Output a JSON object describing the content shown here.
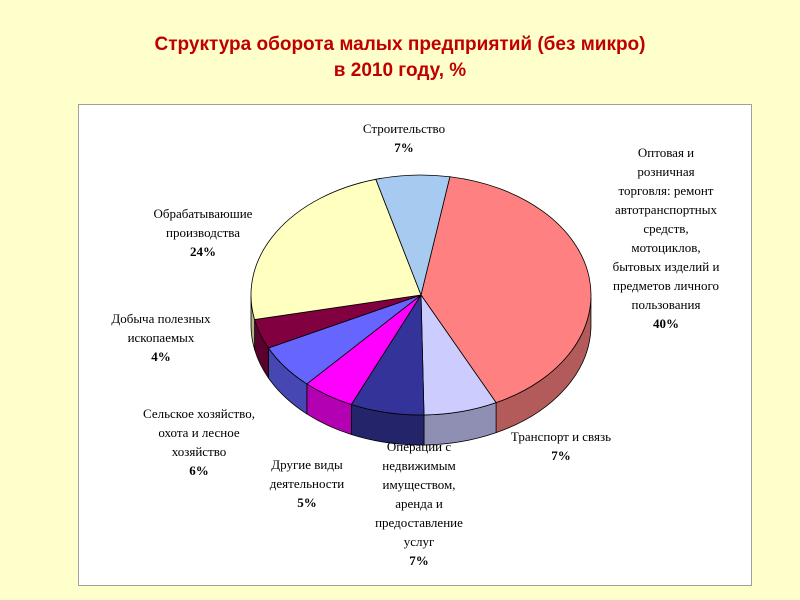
{
  "title_line1": "Структура оборота малых предприятий  (без микро)",
  "title_line2": "в 2010 году, %",
  "chart_data": {
    "type": "pie",
    "slices": [
      {
        "label": [
          "Оптовая и",
          "розничная",
          "торговля: ремонт",
          "автотранспортных",
          "средств,",
          "мотоциклов,",
          "бытовых изделий и",
          "предметов личного",
          "пользования"
        ],
        "pct_label": "40%",
        "value": 40,
        "color": "#ff8080"
      },
      {
        "label": [
          "Транспорт и связь"
        ],
        "pct_label": "7%",
        "value": 7,
        "color": "#ccccff"
      },
      {
        "label": [
          "Операции с",
          "недвижимым",
          "имуществом,",
          "аренда и",
          "предоставление",
          "услуг"
        ],
        "pct_label": "7%",
        "value": 7,
        "color": "#333399"
      },
      {
        "label": [
          "Другие виды",
          "деятельности"
        ],
        "pct_label": "5%",
        "value": 5,
        "color": "#ff00ff"
      },
      {
        "label": [
          "Сельское хозяйство,",
          "охота и лесное",
          "хозяйство"
        ],
        "pct_label": "6%",
        "value": 6,
        "color": "#6666ff"
      },
      {
        "label": [
          "Добыча полезных",
          "ископаемых"
        ],
        "pct_label": "4%",
        "value": 4,
        "color": "#800040"
      },
      {
        "label": [
          "Обрабатываюшие",
          "производства"
        ],
        "pct_label": "24%",
        "value": 24,
        "color": "#ffffc0"
      },
      {
        "label": [
          "Строительство"
        ],
        "pct_label": "7%",
        "value": 7,
        "color": "#a6caf0"
      }
    ]
  }
}
